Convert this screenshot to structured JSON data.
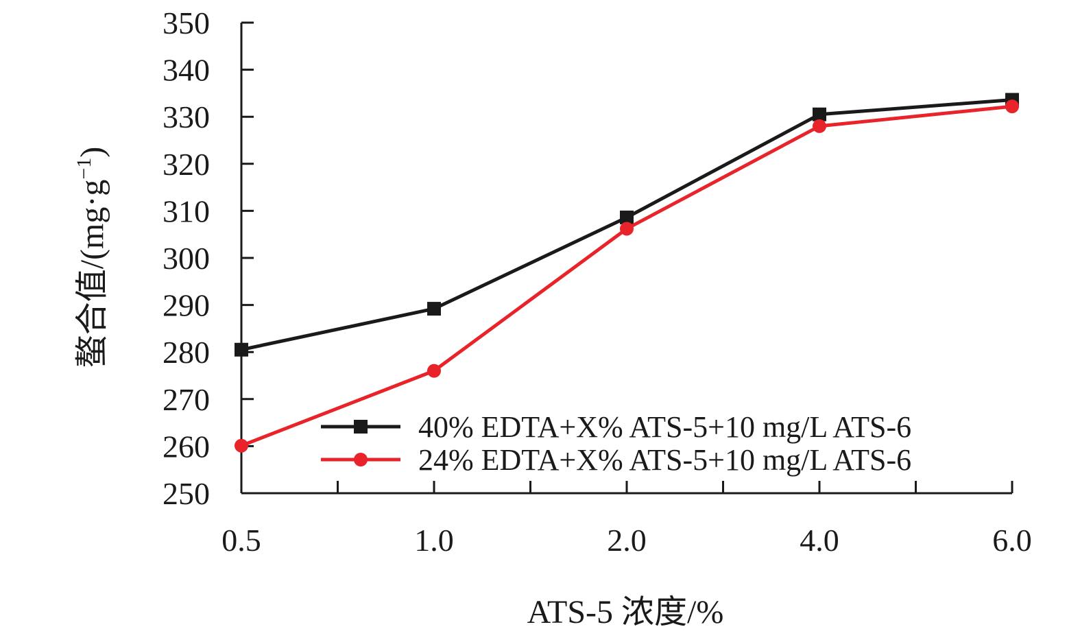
{
  "chart_data": {
    "type": "line",
    "categories": [
      "0.5",
      "1.0",
      "2.0",
      "4.0",
      "6.0"
    ],
    "xlabel": "ATS-5 浓度/%",
    "ylabel_prefix": "螯合值/(mg·g",
    "ylabel_exponent": "−1",
    "ylabel_suffix": ")",
    "ylim": [
      250,
      350
    ],
    "yticks": [
      250,
      260,
      270,
      280,
      290,
      300,
      310,
      320,
      330,
      340,
      350
    ],
    "grid": false,
    "legend_position": "bottom-right",
    "series": [
      {
        "name": "40% EDTA+X% ATS-5+10 mg/L ATS-6",
        "values": [
          280.5,
          289.2,
          308.6,
          330.5,
          333.6
        ],
        "color": "#1a1a1a",
        "marker": "square"
      },
      {
        "name": "24% EDTA+X% ATS-5+10 mg/L ATS-6",
        "values": [
          260.1,
          276.0,
          306.2,
          328.0,
          332.2
        ],
        "color": "#e8232a",
        "marker": "circle"
      }
    ]
  }
}
